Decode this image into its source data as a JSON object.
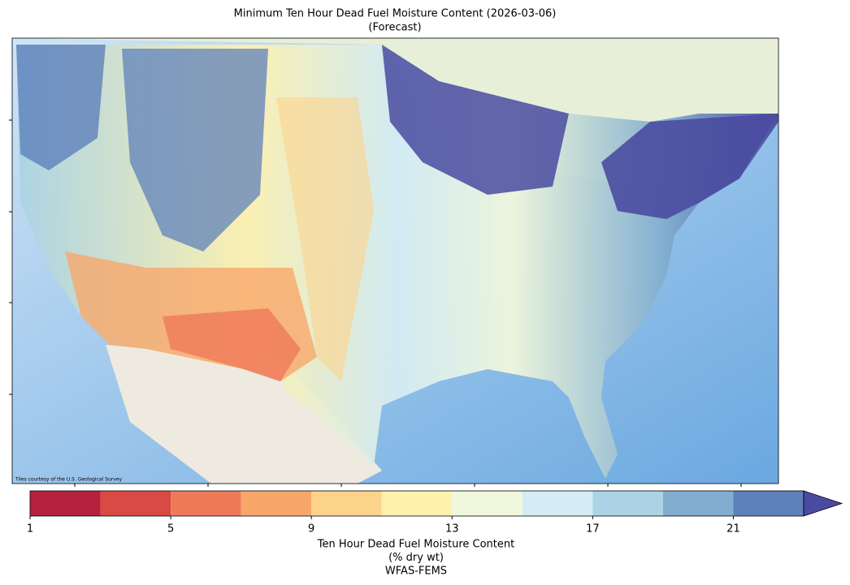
{
  "title": [
    "Minimum Ten Hour Dead Fuel Moisture Content (2026-03-06)",
    "(Forecast)"
  ],
  "attribution": "Tiles courtesy of the U.S. Geological Survey",
  "colorbar": {
    "bins": [
      1,
      3,
      5,
      7,
      9,
      11,
      13,
      15,
      17,
      19,
      21,
      23
    ],
    "colors": [
      "#b5223f",
      "#d94a44",
      "#ef7a5a",
      "#f8a76b",
      "#fdd38c",
      "#fef1ae",
      "#f0f7dc",
      "#d4ecf3",
      "#abd3e5",
      "#81aecf",
      "#5f81bb"
    ],
    "extend": "max",
    "extend_color": "#4a4ba0",
    "xlim": [
      1,
      23
    ],
    "xticks": [
      1,
      5,
      9,
      13,
      17,
      21
    ],
    "label": [
      "Ten Hour Dead Fuel Moisture Content",
      "(% dry wt)",
      "WFAS-FEMS"
    ]
  }
}
